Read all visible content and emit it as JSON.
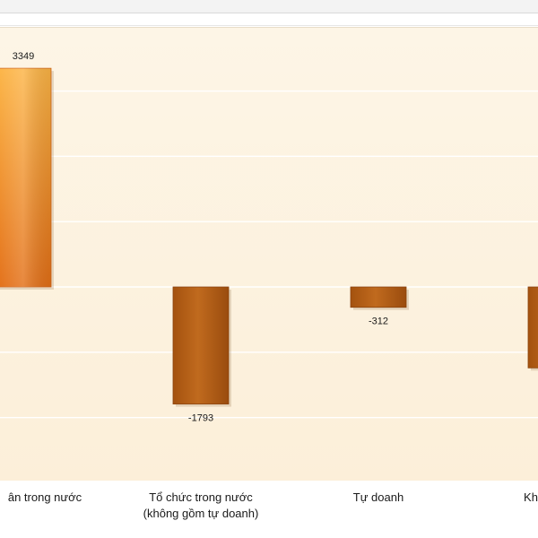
{
  "chart_data": {
    "type": "bar",
    "categories": [
      "Cá nhân trong nước",
      "Tổ chức trong nước\n(không gồm tự doanh)",
      "Tự doanh",
      "Khối ngoại"
    ],
    "categories_visible": [
      "ân trong nước",
      "Tổ chức trong nước",
      "(không gồm tự doanh)",
      "Tự doanh",
      "Kh"
    ],
    "values": [
      3349,
      -1793,
      -312,
      -1240
    ],
    "data_labels": [
      "3349",
      "-1793",
      "-312",
      ""
    ],
    "ylim": [
      -3000,
      4000
    ],
    "grid": true,
    "colors": {
      "positive_top": "#fbb040",
      "positive_bottom": "#e8741a",
      "negative": "#b05c14",
      "negative_light": "#d07a2a",
      "grid": "#ffffff"
    }
  }
}
